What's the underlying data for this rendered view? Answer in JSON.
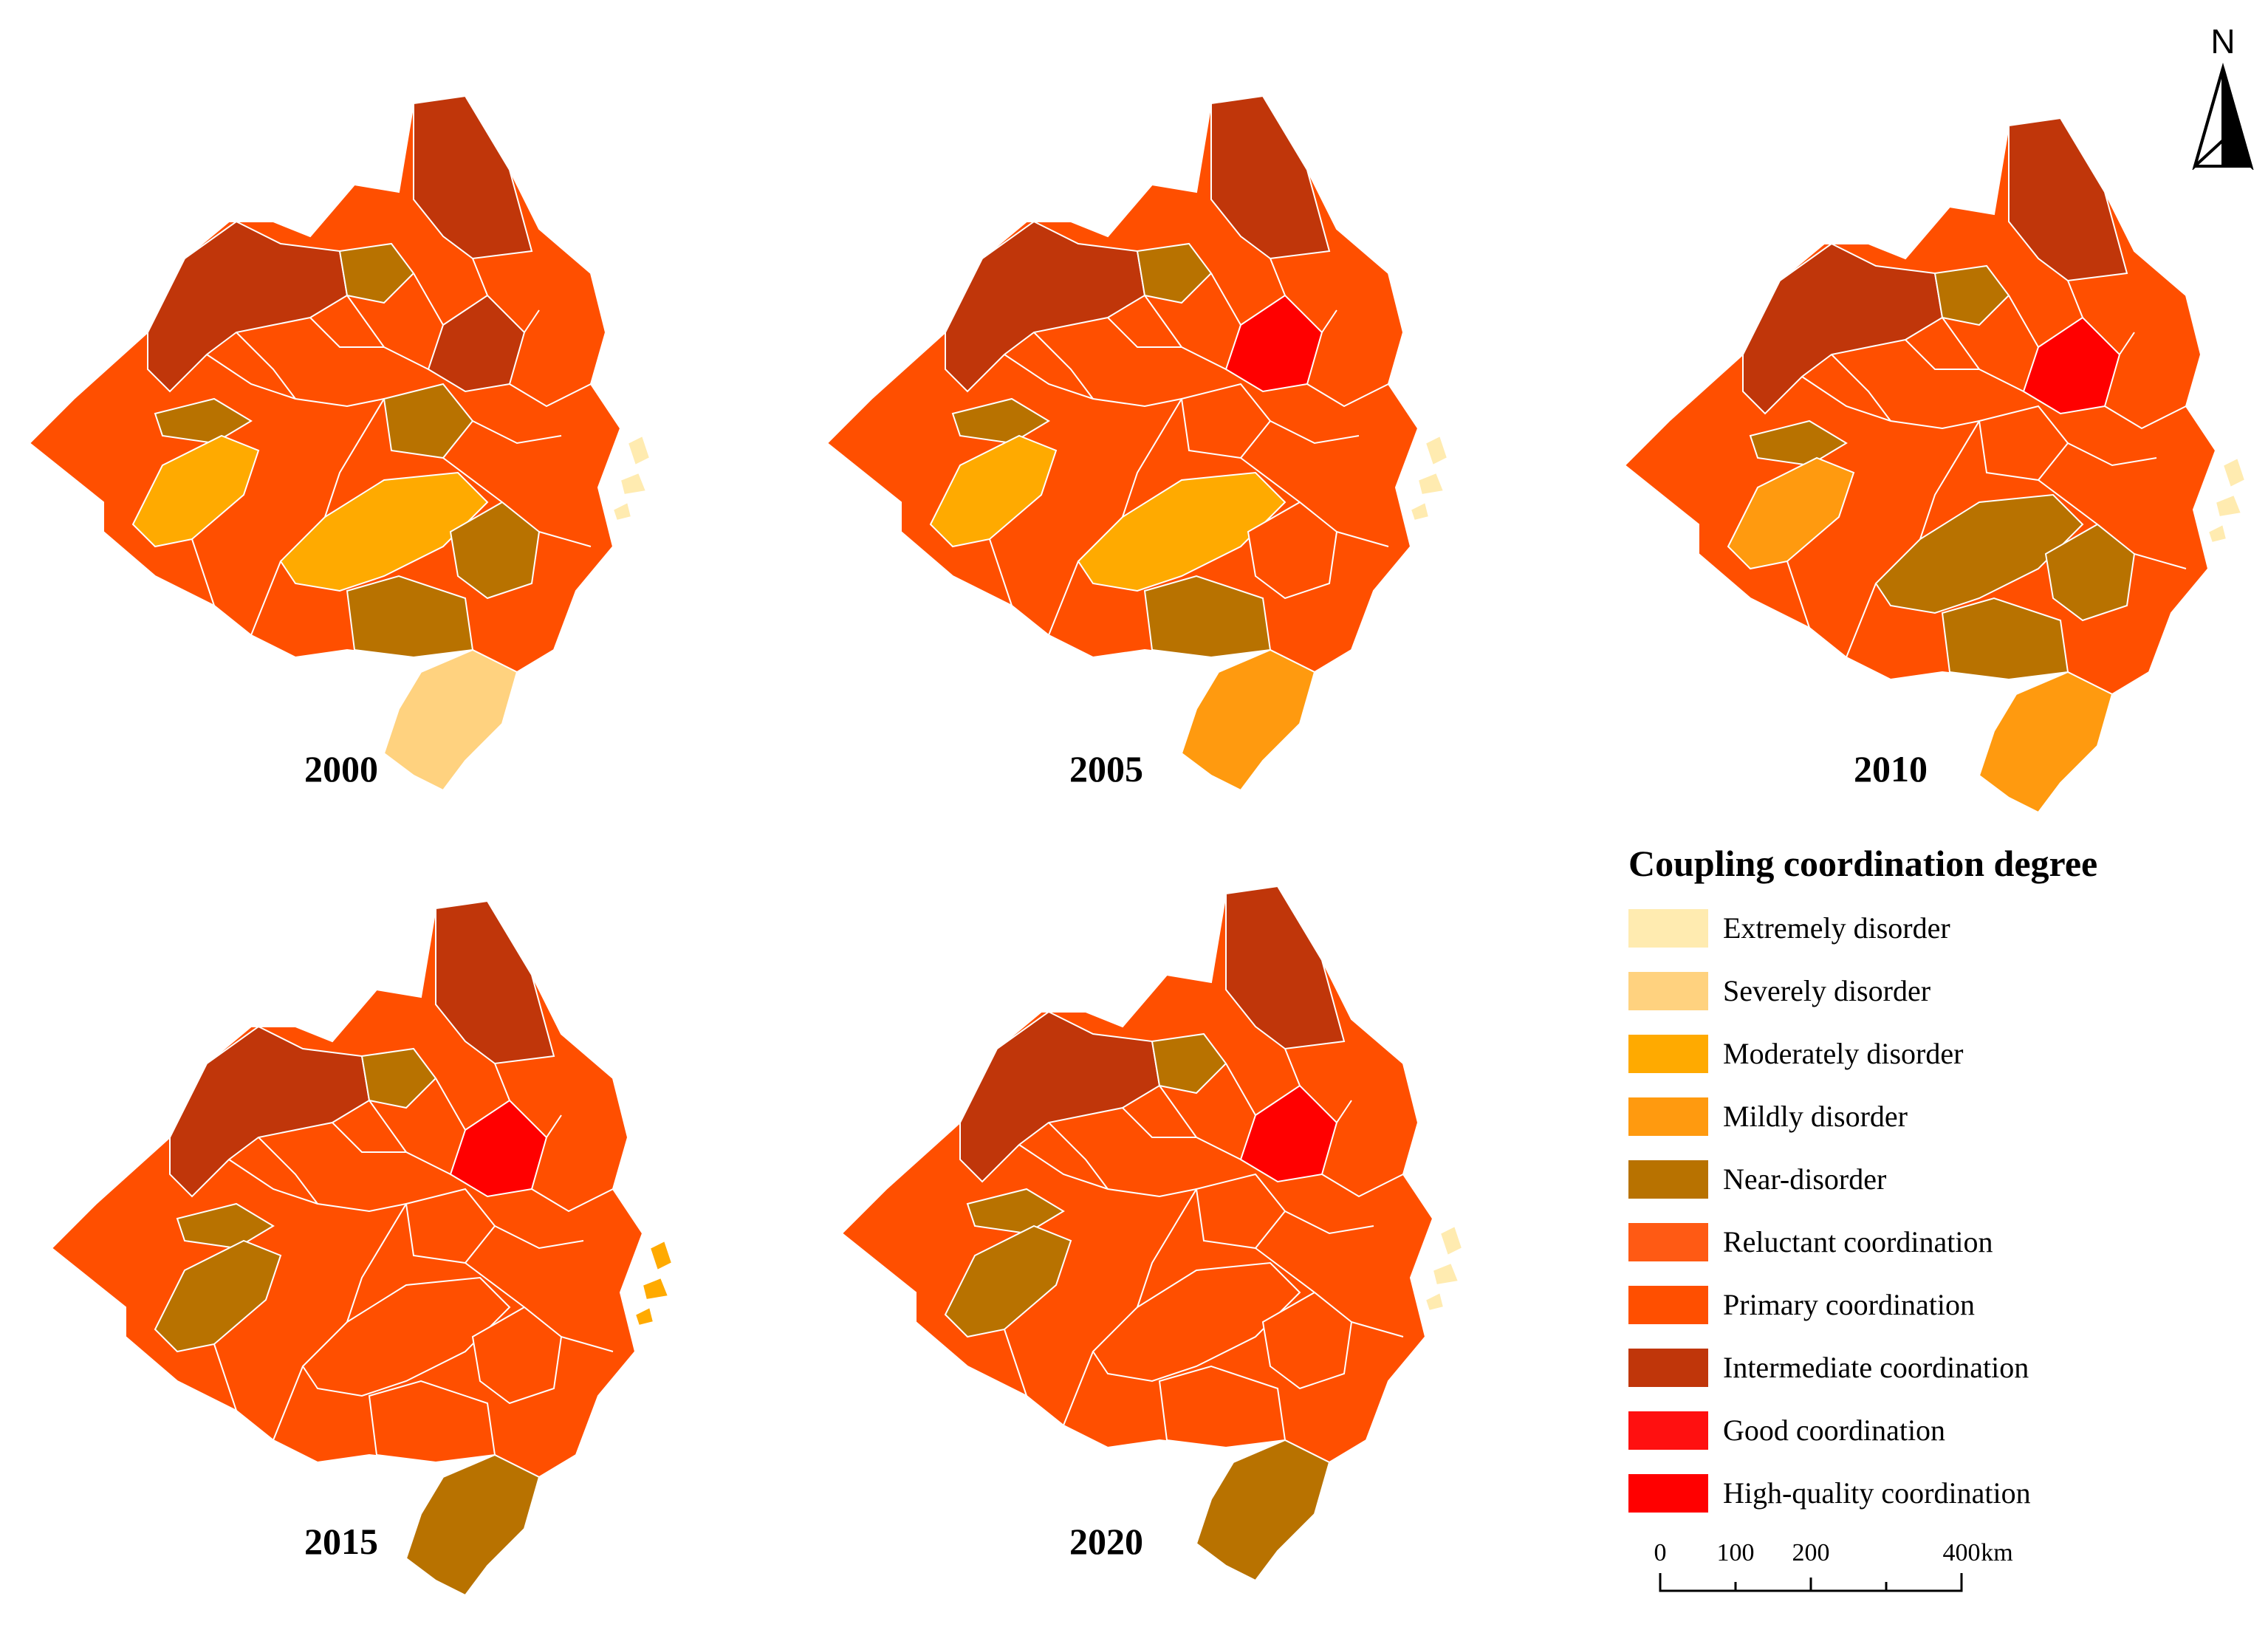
{
  "years": [
    "2000",
    "2005",
    "2010",
    "2015",
    "2020"
  ],
  "north_arrow": {
    "label": "N"
  },
  "legend": {
    "title": "Coupling coordination degree",
    "items": [
      {
        "label": "Extremely disorder",
        "color": "#ffebb0"
      },
      {
        "label": "Severely disorder",
        "color": "#ffd27f"
      },
      {
        "label": "Moderately disorder",
        "color": "#ffaa00"
      },
      {
        "label": "Mildly disorder",
        "color": "#ff9a0f"
      },
      {
        "label": "Near-disorder",
        "color": "#b87200"
      },
      {
        "label": "Reluctant coordination",
        "color": "#ff5a14"
      },
      {
        "label": "Primary coordination",
        "color": "#ff4f00"
      },
      {
        "label": "Intermediate coordination",
        "color": "#c0360a"
      },
      {
        "label": "Good coordination",
        "color": "#ff1010"
      },
      {
        "label": "High-quality coordination",
        "color": "#ff0000"
      }
    ]
  },
  "scale_bar": {
    "ticks": [
      "0",
      "100",
      "200",
      "400"
    ],
    "unit": "km"
  },
  "maps": {
    "y2000": {
      "north": "#c0360a",
      "northwest": "#c0360a",
      "central_north": "#b87200",
      "central": "#b87200",
      "east_core": "#c0360a",
      "west_strip": "#b87200",
      "southwest_belt": "#ffaa00",
      "south_central_large": "#ffaa00",
      "south_east_block": "#b87200",
      "south_block": "#b87200",
      "far_south": "#ffd27f",
      "islands": "#ffebb0"
    },
    "y2005": {
      "north": "#c0360a",
      "northwest": "#c0360a",
      "central_north": "#b87200",
      "central": "#ff4f00",
      "east_core": "#ff0000",
      "west_strip": "#b87200",
      "southwest_belt": "#ffaa00",
      "south_central_large": "#ffaa00",
      "south_east_block": "#ff4f00",
      "south_block": "#b87200",
      "far_south": "#ff9a0f",
      "islands": "#ffebb0"
    },
    "y2010": {
      "north": "#c0360a",
      "northwest": "#c0360a",
      "central_north": "#b87200",
      "central": "#ff4f00",
      "east_core": "#ff0000",
      "west_strip": "#b87200",
      "southwest_belt": "#ff9a0f",
      "south_central_large": "#b87200",
      "south_east_block": "#b87200",
      "south_block": "#b87200",
      "far_south": "#ff9a0f",
      "islands": "#ffebb0"
    },
    "y2015": {
      "north": "#c0360a",
      "northwest": "#c0360a",
      "central_north": "#b87200",
      "central": "#ff4f00",
      "east_core": "#ff0000",
      "west_strip": "#b87200",
      "southwest_belt": "#b87200",
      "south_central_large": "#ff4f00",
      "south_east_block": "#ff4f00",
      "south_block": "#ff4f00",
      "far_south": "#b87200",
      "islands": "#ffaa00"
    },
    "y2020": {
      "north": "#c0360a",
      "northwest": "#c0360a",
      "central_north": "#b87200",
      "central": "#ff4f00",
      "east_core": "#ff0000",
      "west_strip": "#b87200",
      "southwest_belt": "#b87200",
      "south_central_large": "#ff4f00",
      "south_east_block": "#ff4f00",
      "south_block": "#ff4f00",
      "far_south": "#b87200",
      "islands": "#ffebb0"
    }
  }
}
